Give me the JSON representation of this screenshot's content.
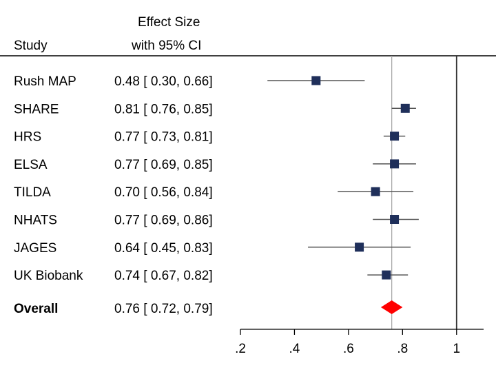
{
  "chart_data": {
    "type": "forest",
    "header": {
      "study_label": "Study",
      "effect_label_line1": "Effect Size",
      "effect_label_line2": "with 95% CI"
    },
    "xlim": [
      0.2,
      1.1
    ],
    "xticks": [
      0.2,
      0.4,
      0.6,
      0.8,
      1.0
    ],
    "xtick_labels": [
      ".2",
      ".4",
      ".6",
      ".8",
      "1"
    ],
    "null_line": 1.0,
    "overall_line": 0.76,
    "studies": [
      {
        "name": "Rush MAP",
        "effect": 0.48,
        "lo": 0.3,
        "hi": 0.66,
        "ci_text": "0.48 [ 0.30,  0.66]"
      },
      {
        "name": "SHARE",
        "effect": 0.81,
        "lo": 0.76,
        "hi": 0.85,
        "ci_text": "0.81 [ 0.76,  0.85]"
      },
      {
        "name": "HRS",
        "effect": 0.77,
        "lo": 0.73,
        "hi": 0.81,
        "ci_text": "0.77 [ 0.73,  0.81]"
      },
      {
        "name": "ELSA",
        "effect": 0.77,
        "lo": 0.69,
        "hi": 0.85,
        "ci_text": "0.77 [ 0.69,  0.85]"
      },
      {
        "name": "TILDA",
        "effect": 0.7,
        "lo": 0.56,
        "hi": 0.84,
        "ci_text": "0.70 [ 0.56,  0.84]"
      },
      {
        "name": "NHATS",
        "effect": 0.77,
        "lo": 0.69,
        "hi": 0.86,
        "ci_text": "0.77 [ 0.69,  0.86]"
      },
      {
        "name": "JAGES",
        "effect": 0.64,
        "lo": 0.45,
        "hi": 0.83,
        "ci_text": "0.64 [ 0.45,  0.83]"
      },
      {
        "name": "UK Biobank",
        "effect": 0.74,
        "lo": 0.67,
        "hi": 0.82,
        "ci_text": "0.74 [ 0.67,  0.82]"
      }
    ],
    "overall": {
      "name": "Overall",
      "effect": 0.76,
      "lo": 0.72,
      "hi": 0.79,
      "ci_text": "0.76 [ 0.72,  0.79]"
    },
    "colors": {
      "marker": "#1f2f5a",
      "ci_line": "#555555",
      "overall": "#ff0000",
      "overall_line": "#aaaaaa",
      "null_line": "#333333",
      "axis": "#000000"
    }
  }
}
